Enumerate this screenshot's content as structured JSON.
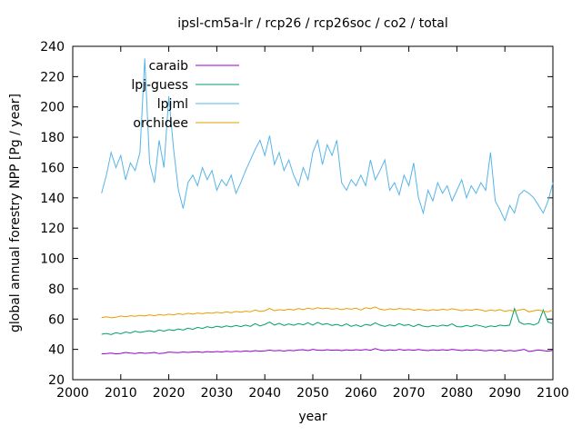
{
  "page": {
    "background": "#ffffff"
  },
  "chart_data": {
    "type": "line",
    "title": "ipsl-cm5a-lr / rcp26 / rcp26soc / co2 / total",
    "xlabel": "year",
    "ylabel": "global annual forestry NPP [Pg / year]",
    "xlim": [
      2000,
      2100
    ],
    "ylim": [
      20,
      240
    ],
    "xtick_step": 10,
    "ytick_step": 20,
    "grid": false,
    "legend_position": "top-left",
    "x": [
      2006,
      2007,
      2008,
      2009,
      2010,
      2011,
      2012,
      2013,
      2014,
      2015,
      2016,
      2017,
      2018,
      2019,
      2020,
      2021,
      2022,
      2023,
      2024,
      2025,
      2026,
      2027,
      2028,
      2029,
      2030,
      2031,
      2032,
      2033,
      2034,
      2035,
      2036,
      2037,
      2038,
      2039,
      2040,
      2041,
      2042,
      2043,
      2044,
      2045,
      2046,
      2047,
      2048,
      2049,
      2050,
      2051,
      2052,
      2053,
      2054,
      2055,
      2056,
      2057,
      2058,
      2059,
      2060,
      2061,
      2062,
      2063,
      2064,
      2065,
      2066,
      2067,
      2068,
      2069,
      2070,
      2071,
      2072,
      2073,
      2074,
      2075,
      2076,
      2077,
      2078,
      2079,
      2080,
      2081,
      2082,
      2083,
      2084,
      2085,
      2086,
      2087,
      2088,
      2089,
      2090,
      2091,
      2092,
      2093,
      2094,
      2095,
      2096,
      2097,
      2098,
      2099,
      2100
    ],
    "series": [
      {
        "name": "caraib",
        "color": "#9400d3",
        "values": [
          37.0,
          37.2,
          37.5,
          37.0,
          37.3,
          38.0,
          37.5,
          37.2,
          37.8,
          37.4,
          37.6,
          38.0,
          37.2,
          37.5,
          38.2,
          38.0,
          37.8,
          38.3,
          38.0,
          38.2,
          38.4,
          38.0,
          38.5,
          38.2,
          38.6,
          38.3,
          38.7,
          38.4,
          38.8,
          38.5,
          39.0,
          38.6,
          39.2,
          38.8,
          39.0,
          39.5,
          39.0,
          39.3,
          38.9,
          39.4,
          39.1,
          39.6,
          39.8,
          39.2,
          40.0,
          39.5,
          39.3,
          39.8,
          39.4,
          39.6,
          39.2,
          39.7,
          39.3,
          39.8,
          39.5,
          39.9,
          39.4,
          40.5,
          39.6,
          39.2,
          39.7,
          39.3,
          40.0,
          39.5,
          39.8,
          39.4,
          39.9,
          39.5,
          39.2,
          39.7,
          39.3,
          39.8,
          39.4,
          40.0,
          39.6,
          39.2,
          39.7,
          39.3,
          39.8,
          39.4,
          39.0,
          39.5,
          39.1,
          39.6,
          38.8,
          39.3,
          38.9,
          39.4,
          40.0,
          38.6,
          39.1,
          39.6,
          39.2,
          38.8,
          39.3
        ]
      },
      {
        "name": "lpj-guess",
        "color": "#009e73",
        "values": [
          50.0,
          50.5,
          49.8,
          51.0,
          50.3,
          51.5,
          50.8,
          52.0,
          51.2,
          51.8,
          52.3,
          51.6,
          52.8,
          52.0,
          53.0,
          52.5,
          53.5,
          52.8,
          54.0,
          53.2,
          54.5,
          53.8,
          55.0,
          54.2,
          55.3,
          54.6,
          55.5,
          54.8,
          55.8,
          55.0,
          56.0,
          55.2,
          57.0,
          55.5,
          56.5,
          58.0,
          56.0,
          57.2,
          55.8,
          56.8,
          55.9,
          57.0,
          56.2,
          57.5,
          56.0,
          57.8,
          56.4,
          57.0,
          55.8,
          56.5,
          55.5,
          56.8,
          55.2,
          56.2,
          55.0,
          56.5,
          55.8,
          57.5,
          56.0,
          55.2,
          56.2,
          55.5,
          57.0,
          55.8,
          56.3,
          55.0,
          56.5,
          55.3,
          54.8,
          55.8,
          55.2,
          56.0,
          55.5,
          56.8,
          55.0,
          54.8,
          55.8,
          55.0,
          56.2,
          55.5,
          54.5,
          55.5,
          55.0,
          56.0,
          55.5,
          56.0,
          67.0,
          58.0,
          56.5,
          57.0,
          56.0,
          57.5,
          66.0,
          58.0,
          57.0
        ]
      },
      {
        "name": "lpjml",
        "color": "#56b4e9",
        "values": [
          143,
          155,
          170,
          160,
          168,
          152,
          163,
          158,
          170,
          232,
          163,
          150,
          178,
          160,
          207,
          172,
          145,
          133,
          150,
          155,
          148,
          160,
          152,
          158,
          145,
          152,
          148,
          155,
          143,
          150,
          158,
          165,
          172,
          178,
          168,
          181,
          162,
          170,
          158,
          165,
          155,
          148,
          160,
          152,
          170,
          178,
          162,
          175,
          168,
          178,
          150,
          145,
          152,
          148,
          155,
          148,
          165,
          152,
          158,
          165,
          145,
          150,
          142,
          155,
          148,
          163,
          140,
          130,
          145,
          138,
          150,
          143,
          148,
          138,
          145,
          152,
          140,
          148,
          143,
          150,
          145,
          170,
          138,
          132,
          125,
          135,
          130,
          142,
          145,
          143,
          140,
          135,
          130,
          138,
          150
        ]
      },
      {
        "name": "orchidee",
        "color": "#e69f00",
        "values": [
          61.0,
          61.5,
          60.8,
          61.2,
          62.0,
          61.5,
          62.2,
          61.8,
          62.5,
          62.0,
          62.8,
          62.2,
          63.0,
          62.5,
          63.2,
          62.8,
          63.5,
          63.0,
          63.8,
          63.2,
          64.0,
          63.5,
          64.2,
          63.8,
          64.5,
          64.0,
          64.8,
          64.2,
          65.0,
          64.5,
          65.2,
          64.8,
          66.0,
          65.0,
          65.5,
          67.0,
          65.5,
          66.2,
          65.8,
          66.5,
          66.0,
          67.0,
          66.2,
          67.2,
          66.5,
          67.5,
          66.8,
          67.2,
          66.5,
          67.0,
          66.2,
          67.0,
          66.5,
          67.2,
          66.0,
          67.5,
          66.8,
          68.0,
          66.5,
          66.0,
          66.8,
          66.2,
          67.0,
          66.5,
          66.8,
          65.8,
          66.5,
          66.0,
          65.5,
          66.2,
          65.8,
          66.5,
          66.0,
          66.8,
          66.2,
          65.5,
          66.2,
          65.8,
          66.5,
          66.0,
          65.2,
          66.0,
          65.5,
          66.2,
          65.0,
          65.8,
          65.2,
          66.0,
          66.5,
          64.8,
          65.5,
          66.0,
          65.2,
          64.8,
          66.0
        ]
      }
    ]
  }
}
